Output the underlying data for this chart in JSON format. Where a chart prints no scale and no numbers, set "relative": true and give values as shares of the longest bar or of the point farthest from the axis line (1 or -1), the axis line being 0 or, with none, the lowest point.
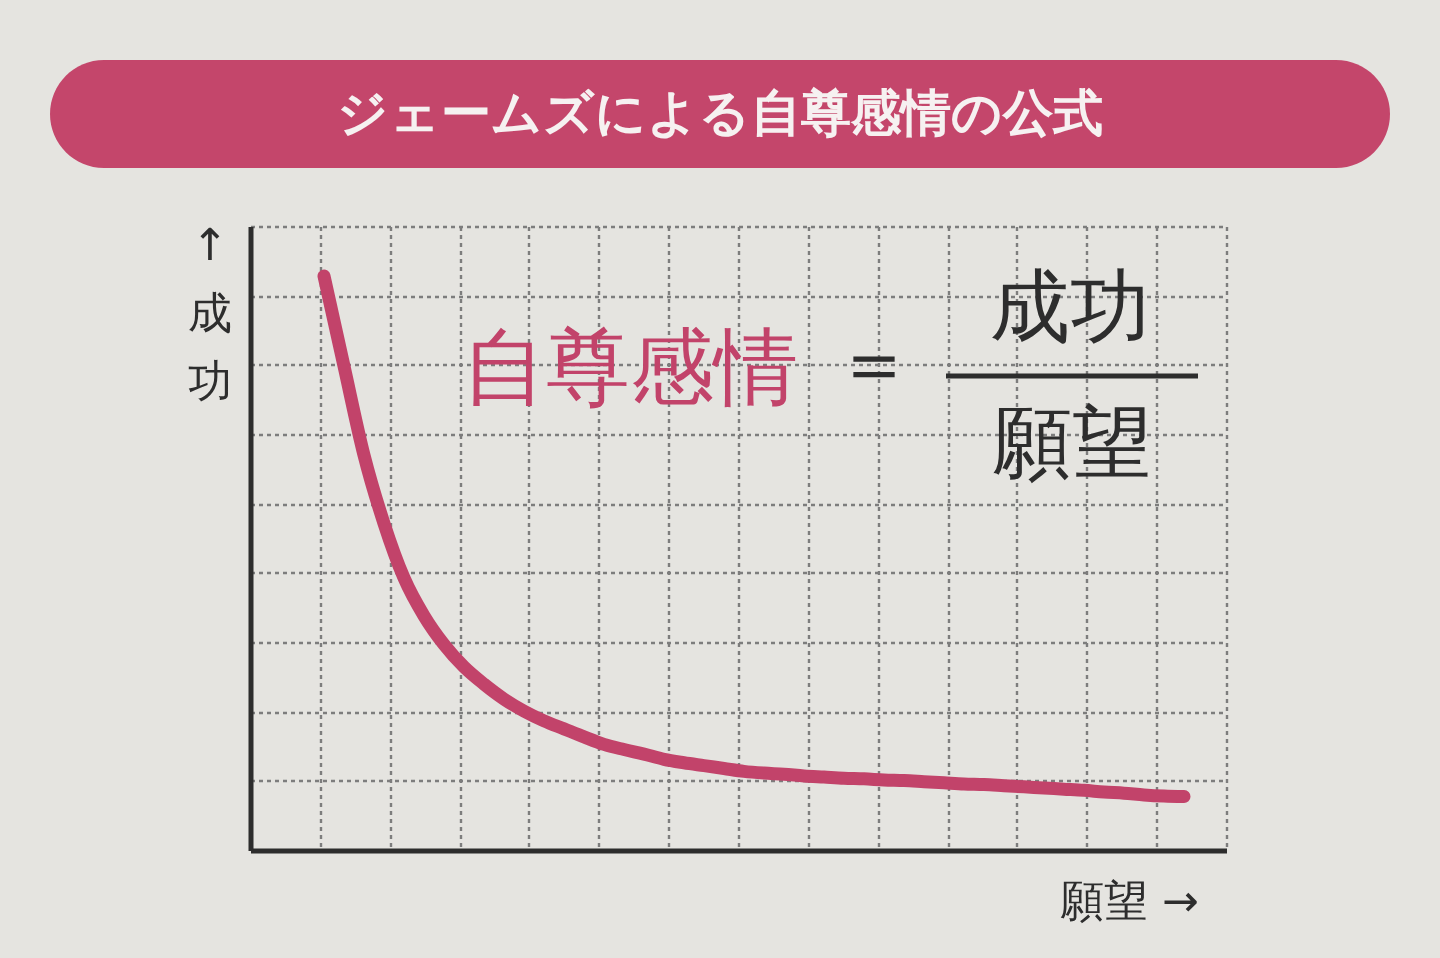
{
  "chart_data": {
    "type": "line",
    "title": "ジェームズによる自尊感情の公式",
    "xlabel": "願望 →",
    "ylabel": "↑成功",
    "annotations": [
      "自尊感情",
      "＝",
      "成功",
      "願望"
    ],
    "categories": [
      null,
      null,
      null,
      null,
      null,
      null,
      null,
      null,
      null,
      null,
      null,
      null,
      null,
      null,
      null,
      null,
      null,
      null,
      null,
      null,
      null,
      null,
      null,
      null,
      null,
      null,
      null,
      null,
      null,
      null,
      null,
      null,
      null,
      null,
      null,
      null,
      null,
      null,
      null,
      null,
      null,
      null,
      null,
      null
    ],
    "values": [
      1.0,
      0.843,
      0.688,
      0.569,
      0.474,
      0.408,
      0.358,
      0.319,
      0.289,
      0.263,
      0.242,
      0.225,
      0.211,
      0.197,
      0.184,
      0.175,
      0.167,
      0.158,
      0.152,
      0.147,
      0.142,
      0.137,
      0.134,
      0.132,
      0.129,
      0.127,
      0.125,
      0.124,
      0.122,
      0.121,
      0.119,
      0.117,
      0.115,
      0.114,
      0.112,
      0.11,
      0.108,
      0.106,
      0.104,
      0.101,
      0.099,
      0.096,
      0.094,
      0.093
    ],
    "color": "#c2436a",
    "relative": true,
    "grid": true,
    "line_style": "solid"
  }
}
